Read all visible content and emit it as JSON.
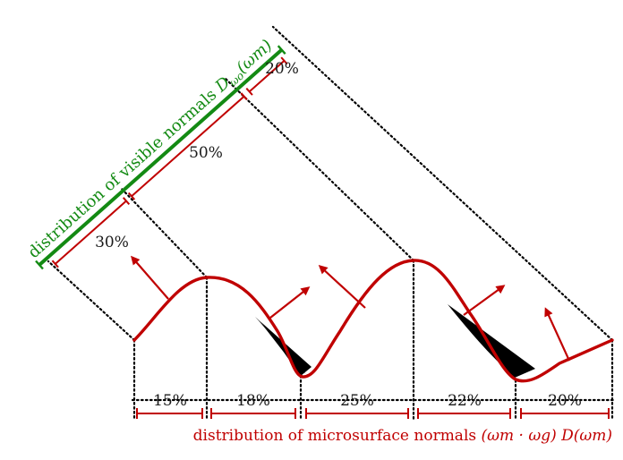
{
  "colors": {
    "surface": "#c00000",
    "visible_axis": "#138a13",
    "micro_axis": "#c00000",
    "shadow": "#000000"
  },
  "visible_label": {
    "prefix": "distribution of visible normals ",
    "symbol": "D",
    "subscript": "ωo",
    "argument": "(ωm)"
  },
  "micro_label": {
    "prefix": "distribution of microsurface normals ",
    "argument": "(ωm · ωg) D(ωm)"
  },
  "visible_segments": [
    {
      "label": "30%"
    },
    {
      "label": "50%"
    },
    {
      "label": "20%"
    }
  ],
  "micro_segments": [
    {
      "label": "15%"
    },
    {
      "label": "18%"
    },
    {
      "label": "25%"
    },
    {
      "label": "22%"
    },
    {
      "label": "20%"
    }
  ]
}
